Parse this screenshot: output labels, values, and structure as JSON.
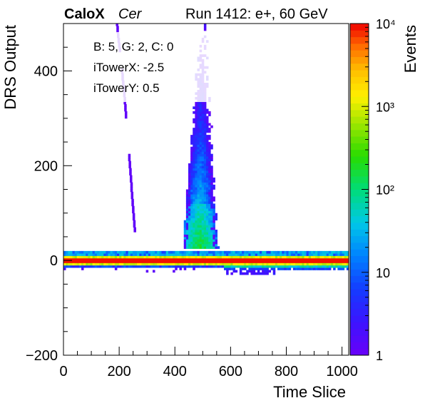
{
  "header": {
    "experiment": "CaloX",
    "channel": "Cer",
    "run_label": "Run 1412: e+, 60 GeV"
  },
  "info_box": {
    "line1": "B: 5, G: 2, C: 0",
    "line2": "iTowerX: -2.5",
    "line3": "iTowerY: 0.5"
  },
  "chart_data": {
    "type": "heatmap",
    "xlabel": "Time Slice",
    "ylabel": "DRS Output",
    "zlabel": "Events",
    "xlim": [
      0,
      1024
    ],
    "ylim": [
      -200,
      500
    ],
    "zlim": [
      1,
      10000
    ],
    "z_scale": "log",
    "x_ticks": [
      0,
      200,
      400,
      600,
      800,
      1000
    ],
    "x_tick_labels": [
      "0",
      "200",
      "400",
      "600",
      "800",
      "1000"
    ],
    "y_ticks": [
      -200,
      0,
      200,
      400
    ],
    "y_tick_labels": [
      "−200",
      "0",
      "200",
      "400"
    ],
    "z_ticks": [
      1,
      10,
      100,
      1000,
      10000
    ],
    "z_tick_labels": [
      "1",
      "10",
      "10²",
      "10³",
      "10⁴"
    ],
    "grid": false,
    "colors": {
      "low": "#6a00f8",
      "mid": "#00c0e0",
      "high": "#ff0000"
    },
    "features": [
      {
        "name": "baseline band",
        "x_range": [
          0,
          1024
        ],
        "y_range": [
          -10,
          10
        ],
        "z_approx": 10000
      },
      {
        "name": "pulse peak",
        "x_center": 500,
        "y_peak": 500
      },
      {
        "name": "negative undershoot",
        "x_range": [
          570,
          1024
        ],
        "y_range": [
          -30,
          -10
        ]
      },
      {
        "name": "trigger trace",
        "x_range": [
          190,
          250
        ],
        "y_range": [
          50,
          500
        ]
      }
    ]
  }
}
